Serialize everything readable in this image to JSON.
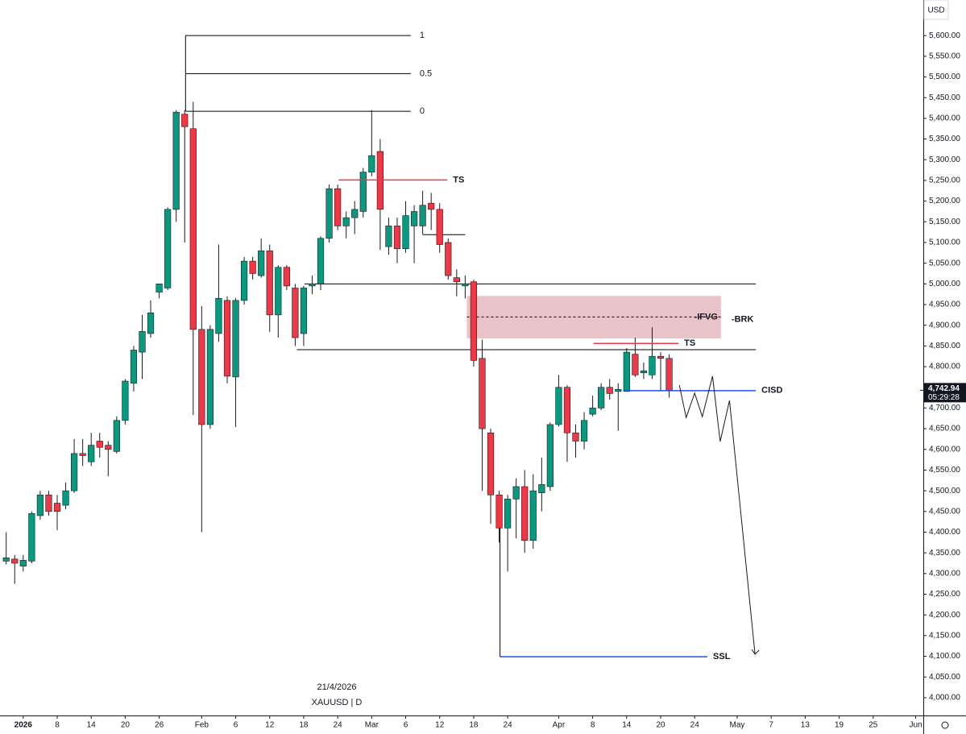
{
  "chart_data": {
    "type": "candlestick",
    "currency": "USD",
    "up_color": "#089981",
    "down_color": "#f23645",
    "x": [
      -2,
      -1,
      0,
      1,
      2,
      3,
      4,
      5,
      6,
      7,
      8,
      9,
      10,
      11,
      12,
      13,
      14,
      15,
      16,
      17,
      18,
      19,
      20,
      21,
      22,
      23,
      24,
      25,
      26,
      27,
      28,
      29,
      30,
      31,
      32,
      33,
      34,
      35,
      36,
      37,
      38,
      39,
      40,
      41,
      42,
      43,
      44,
      45,
      46,
      47,
      48,
      49,
      50,
      51,
      52,
      53,
      54,
      55,
      56,
      57,
      58,
      59,
      60,
      61,
      62,
      63,
      64,
      65,
      66,
      67,
      68,
      69,
      70,
      71,
      72,
      73,
      74,
      75,
      76
    ],
    "open": [
      4330,
      4335,
      4318,
      4330,
      4440,
      4490,
      4470,
      4465,
      4500,
      4590,
      4570,
      4620,
      4610,
      4595,
      4670,
      4760,
      4835,
      4880,
      4980,
      4990,
      5180,
      5410,
      5375,
      4890,
      4660,
      4880,
      4960,
      4775,
      4960,
      5055,
      5020,
      5080,
      4925,
      5040,
      4990,
      4880,
      4995,
      5000,
      5110,
      5230,
      5140,
      5160,
      5175,
      5270,
      5320,
      5090,
      5140,
      5085,
      5140,
      5140,
      5195,
      5180,
      5100,
      5015,
      4995,
      5005,
      4820,
      4640,
      4490,
      4410,
      4480,
      4510,
      4380,
      4495,
      4510,
      4660,
      4750,
      4640,
      4620,
      4685,
      4700,
      4750,
      4740,
      4740,
      4830,
      4785,
      4780,
      4825,
      4820
    ],
    "high": [
      4400,
      4345,
      4345,
      4450,
      4500,
      4500,
      4490,
      4520,
      4625,
      4625,
      4640,
      4640,
      4620,
      4680,
      4770,
      4850,
      4925,
      4960,
      5000,
      5185,
      5420,
      5420,
      5440,
      4946,
      4900,
      5095,
      4970,
      4965,
      5065,
      5065,
      5110,
      5095,
      5045,
      5045,
      5000,
      4995,
      5020,
      5115,
      5240,
      5240,
      5175,
      5200,
      5280,
      5420,
      5350,
      5160,
      5160,
      5200,
      5190,
      5225,
      5220,
      5195,
      5110,
      5035,
      5020,
      5010,
      4865,
      4650,
      4500,
      4490,
      4530,
      4550,
      4540,
      4580,
      4665,
      4780,
      4755,
      4660,
      4690,
      4730,
      4760,
      4770,
      4760,
      4845,
      4870,
      4810,
      4895,
      4835,
      4830
    ],
    "low": [
      4322,
      4275,
      4305,
      4325,
      4430,
      4440,
      4405,
      4455,
      4495,
      4560,
      4560,
      4580,
      4535,
      4590,
      4660,
      4740,
      4770,
      4870,
      4965,
      4985,
      5150,
      5100,
      4683,
      4400,
      4650,
      4860,
      4760,
      4654,
      4950,
      5010,
      5015,
      4884,
      4870,
      4985,
      4850,
      4850,
      4975,
      4985,
      5100,
      5130,
      5110,
      5120,
      5160,
      5260,
      5082,
      5070,
      5050,
      5075,
      5050,
      5120,
      5130,
      5075,
      5010,
      4970,
      4965,
      4800,
      4500,
      4420,
      4375,
      4305,
      4385,
      4350,
      4360,
      4450,
      4500,
      4655,
      4570,
      4580,
      4600,
      4680,
      4695,
      4720,
      4645,
      4740,
      4775,
      4770,
      4770,
      4740,
      4725
    ],
    "close": [
      4338,
      4325,
      4332,
      4445,
      4490,
      4450,
      4450,
      4500,
      4590,
      4585,
      4610,
      4605,
      4600,
      4670,
      4765,
      4840,
      4885,
      4930,
      5000,
      5180,
      5415,
      5380,
      4890,
      4660,
      4890,
      4965,
      4777,
      4960,
      5055,
      5025,
      5080,
      4925,
      5040,
      4995,
      4870,
      4990,
      5000,
      5110,
      5230,
      5140,
      5160,
      5180,
      5270,
      5310,
      5180,
      5140,
      5085,
      5165,
      5175,
      5190,
      5180,
      5095,
      5020,
      5005,
      5000,
      4815,
      4650,
      4490,
      4410,
      4480,
      4510,
      4380,
      4500,
      4515,
      4660,
      4750,
      4640,
      4620,
      4670,
      4700,
      4750,
      4735,
      4745,
      4835,
      4780,
      4790,
      4825,
      4820,
      4742.94
    ],
    "xlim": [
      -2.73,
      105.9
    ],
    "xticks": [
      {
        "value": 0,
        "label": "2026"
      },
      {
        "value": 4,
        "label": "8"
      },
      {
        "value": 8,
        "label": "14"
      },
      {
        "value": 12,
        "label": "20"
      },
      {
        "value": 16,
        "label": "26"
      },
      {
        "value": 21,
        "label": "Feb"
      },
      {
        "value": 25,
        "label": "6"
      },
      {
        "value": 29,
        "label": "12"
      },
      {
        "value": 33,
        "label": "18"
      },
      {
        "value": 37,
        "label": "24"
      },
      {
        "value": 41,
        "label": "Mar"
      },
      {
        "value": 45,
        "label": "6"
      },
      {
        "value": 49,
        "label": "12"
      },
      {
        "value": 53,
        "label": "18"
      },
      {
        "value": 57,
        "label": "24"
      },
      {
        "value": 63,
        "label": "Apr"
      },
      {
        "value": 67,
        "label": "8"
      },
      {
        "value": 71,
        "label": "14"
      },
      {
        "value": 75,
        "label": "20"
      },
      {
        "value": 79,
        "label": "24"
      },
      {
        "value": 84,
        "label": "May"
      },
      {
        "value": 88,
        "label": "7"
      },
      {
        "value": 92,
        "label": "13"
      },
      {
        "value": 96,
        "label": "19"
      },
      {
        "value": 100,
        "label": "25"
      },
      {
        "value": 105,
        "label": "Jun"
      }
    ],
    "ylim": [
      3957,
      5686
    ],
    "yticks": [
      {
        "value": 4000,
        "label": "4,000.00"
      },
      {
        "value": 4050,
        "label": "4,050.00"
      },
      {
        "value": 4100,
        "label": "4,100.00"
      },
      {
        "value": 4150,
        "label": "4,150.00"
      },
      {
        "value": 4200,
        "label": "4,200.00"
      },
      {
        "value": 4250,
        "label": "4,250.00"
      },
      {
        "value": 4300,
        "label": "4,300.00"
      },
      {
        "value": 4350,
        "label": "4,350.00"
      },
      {
        "value": 4400,
        "label": "4,400.00"
      },
      {
        "value": 4450,
        "label": "4,450.00"
      },
      {
        "value": 4500,
        "label": "4,500.00"
      },
      {
        "value": 4550,
        "label": "4,550.00"
      },
      {
        "value": 4600,
        "label": "4,600.00"
      },
      {
        "value": 4650,
        "label": "4,650.00"
      },
      {
        "value": 4700,
        "label": "4,700.00"
      },
      {
        "value": 4750,
        "label": "4,750.00"
      },
      {
        "value": 4800,
        "label": "4,800.00"
      },
      {
        "value": 4850,
        "label": "4,850.00"
      },
      {
        "value": 4900,
        "label": "4,900.00"
      },
      {
        "value": 4950,
        "label": "4,950.00"
      },
      {
        "value": 5000,
        "label": "5,000.00"
      },
      {
        "value": 5050,
        "label": "5,050.00"
      },
      {
        "value": 5100,
        "label": "5,100.00"
      },
      {
        "value": 5150,
        "label": "5,150.00"
      },
      {
        "value": 5200,
        "label": "5,200.00"
      },
      {
        "value": 5250,
        "label": "5,250.00"
      },
      {
        "value": 5300,
        "label": "5,300.00"
      },
      {
        "value": 5350,
        "label": "5,350.00"
      },
      {
        "value": 5400,
        "label": "5,400.00"
      },
      {
        "value": 5450,
        "label": "5,450.00"
      },
      {
        "value": 5500,
        "label": "5,500.00"
      },
      {
        "value": 5550,
        "label": "5,550.00"
      },
      {
        "value": 5600,
        "label": "5,600.00"
      }
    ],
    "grid": false,
    "last_price": {
      "value": 4742.94,
      "label": "4,742.94"
    },
    "countdown": "05:29:28",
    "watermark": [
      "21/4/2026",
      "XAUUSD | D"
    ],
    "fib": {
      "levels": [
        5600,
        5508,
        5417
      ],
      "labels": [
        "1",
        "0.5",
        "0"
      ],
      "x": [
        19.1,
        45.6
      ]
    },
    "lines": [
      {
        "value": 5000,
        "x": [
          33.1,
          86.2
        ],
        "color": "#000000"
      },
      {
        "value": 4841,
        "x": [
          32.2,
          86.2
        ],
        "color": "#000000"
      },
      {
        "value": 5119,
        "x": [
          47,
          52
        ],
        "color": "#000000"
      }
    ],
    "labeled_lines": [
      {
        "name": "TS",
        "value": 5251,
        "x": [
          37.1,
          49.9
        ],
        "color": "#f23645"
      },
      {
        "name": "TS",
        "value": 4856,
        "x": [
          67.1,
          77.1
        ],
        "color": "#f23645"
      },
      {
        "name": "CISD",
        "value": 4742,
        "x": [
          70.7,
          86.2
        ],
        "color": "#1e53e5"
      },
      {
        "name": "SSL",
        "value": 4099,
        "x": [
          56.1,
          80.5
        ],
        "color": "#1e53e5"
      }
    ],
    "zone": {
      "name": "-IFVG",
      "second_label": "-BRK",
      "range": [
        4868,
        4971
      ],
      "mid": 4920,
      "x": [
        52.2,
        82.1
      ],
      "color": "#e8c4c8"
    },
    "projection": {
      "x": [
        77.2,
        78.0,
        79.0,
        79.9,
        81.1,
        82.0,
        83.1,
        86.1
      ],
      "values": [
        4755,
        4677,
        4736,
        4679,
        4777,
        4619,
        4718,
        4105
      ]
    }
  }
}
